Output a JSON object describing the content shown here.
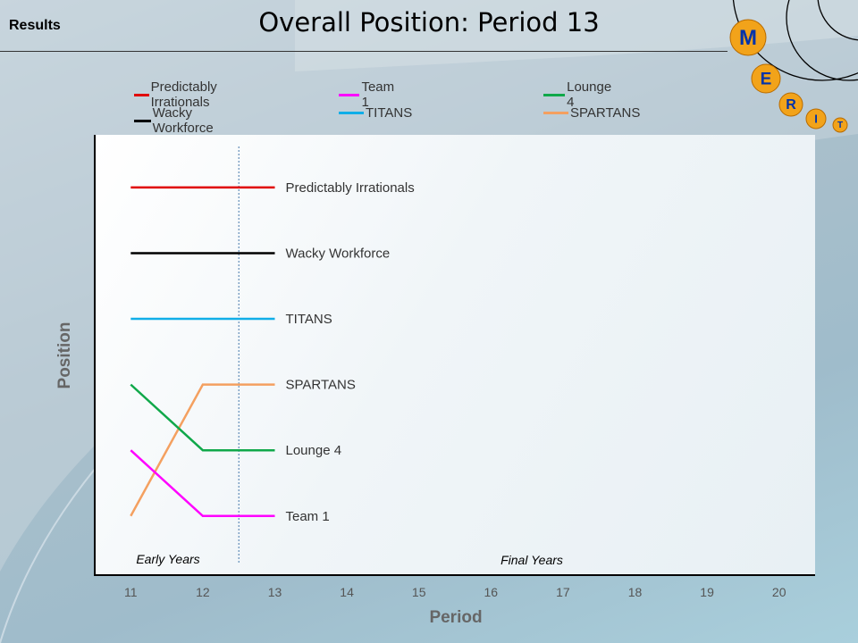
{
  "header": {
    "section_label": "Results",
    "title": "Overall Position: Period 13"
  },
  "logo": {
    "letters": [
      "M",
      "E",
      "R",
      "I",
      "T"
    ],
    "colors": {
      "ball": "#f2a31a",
      "letter": "#0033aa"
    }
  },
  "legend": {
    "items": [
      {
        "label": "Predictably Irrationals",
        "color": "#e00000"
      },
      {
        "label": "Team 1",
        "color": "#ff00ff"
      },
      {
        "label": "Lounge 4",
        "color": "#10a84a"
      },
      {
        "label": "Wacky Workforce",
        "color": "#000000"
      },
      {
        "label": "TITANS",
        "color": "#10aee8"
      },
      {
        "label": "SPARTANS",
        "color": "#f4a060"
      }
    ]
  },
  "chart_data": {
    "type": "line",
    "title": "Overall Position: Period 13",
    "xlabel": "Period",
    "ylabel": "Position",
    "x": [
      11,
      12,
      13
    ],
    "xticks": [
      11,
      12,
      13,
      14,
      15,
      16,
      17,
      18,
      19,
      20
    ],
    "xlim": [
      10.5,
      20.5
    ],
    "ylim": [
      0.2,
      6.9
    ],
    "y_inverted": true,
    "divider_at": 12.5,
    "annotations": {
      "left": "Early Years",
      "right": "Final Years"
    },
    "series": [
      {
        "name": "Predictably Irrationals",
        "color": "#e00000",
        "values": [
          1,
          1,
          1
        ]
      },
      {
        "name": "Wacky Workforce",
        "color": "#000000",
        "values": [
          2,
          2,
          2
        ]
      },
      {
        "name": "TITANS",
        "color": "#10aee8",
        "values": [
          3,
          3,
          3
        ]
      },
      {
        "name": "SPARTANS",
        "color": "#f4a060",
        "values": [
          6,
          4,
          4
        ]
      },
      {
        "name": "Lounge 4",
        "color": "#10a84a",
        "values": [
          4,
          5,
          5
        ]
      },
      {
        "name": "Team 1",
        "color": "#ff00ff",
        "values": [
          5,
          6,
          6
        ]
      }
    ]
  }
}
